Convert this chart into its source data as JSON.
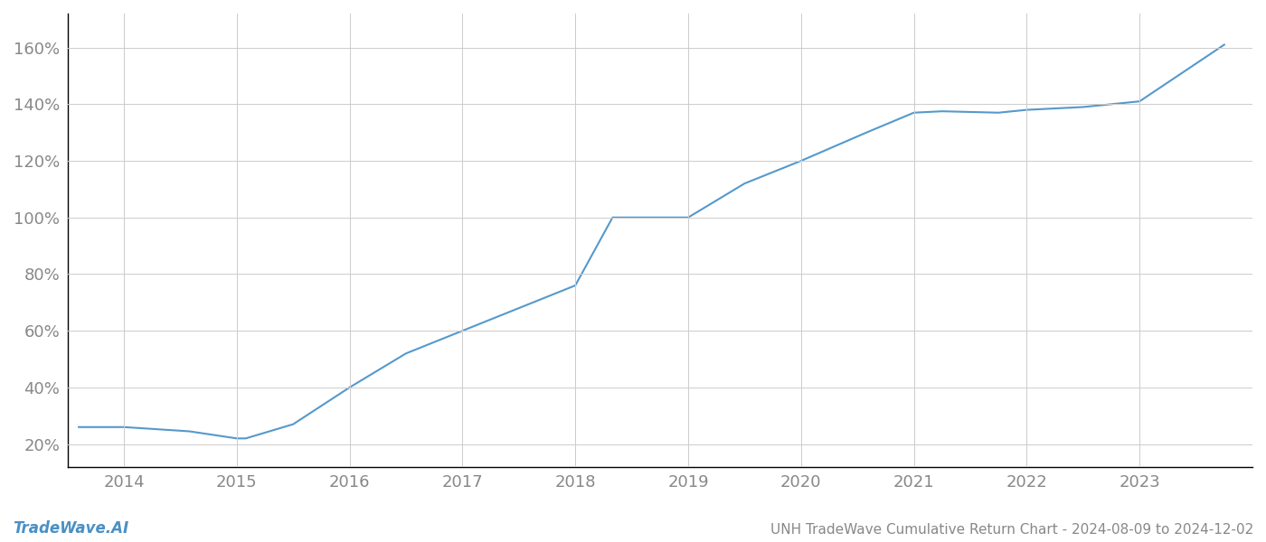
{
  "x_years": [
    2013.6,
    2014.0,
    2014.58,
    2015.0,
    2015.08,
    2015.5,
    2016.0,
    2016.5,
    2017.0,
    2017.5,
    2018.0,
    2018.33,
    2019.0,
    2019.5,
    2020.0,
    2020.58,
    2021.0,
    2021.25,
    2021.75,
    2022.0,
    2022.5,
    2023.0,
    2023.75
  ],
  "y_values": [
    26.0,
    26.0,
    24.5,
    22.0,
    22.0,
    27.0,
    40.0,
    52.0,
    60.0,
    68.0,
    76.0,
    100.0,
    100.0,
    112.0,
    120.0,
    130.0,
    137.0,
    137.5,
    137.0,
    138.0,
    139.0,
    141.0,
    161.0
  ],
  "line_color": "#5599cc",
  "line_width": 1.5,
  "bg_color": "#ffffff",
  "grid_color": "#cccccc",
  "title": "UNH TradeWave Cumulative Return Chart - 2024-08-09 to 2024-12-02",
  "watermark": "TradeWave.AI",
  "xlim": [
    2013.5,
    2024.0
  ],
  "ylim": [
    12,
    172
  ],
  "x_ticks": [
    2014,
    2015,
    2016,
    2017,
    2018,
    2019,
    2020,
    2021,
    2022,
    2023
  ],
  "y_ticks": [
    20,
    40,
    60,
    80,
    100,
    120,
    140,
    160
  ],
  "tick_fontsize": 13,
  "title_fontsize": 11,
  "watermark_fontsize": 12
}
